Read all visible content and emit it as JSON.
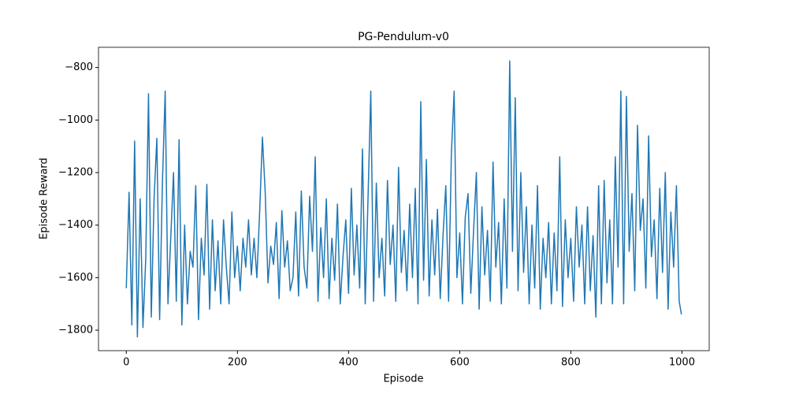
{
  "chart_data": {
    "type": "line",
    "title": "PG-Pendulum-v0",
    "x_label": "Episode",
    "y_label": "Episode Reward",
    "x": [
      0,
      5,
      10,
      15,
      20,
      25,
      30,
      35,
      40,
      45,
      50,
      55,
      60,
      65,
      70,
      75,
      80,
      85,
      90,
      95,
      100,
      105,
      110,
      115,
      120,
      125,
      130,
      135,
      140,
      145,
      150,
      155,
      160,
      165,
      170,
      175,
      180,
      185,
      190,
      195,
      200,
      205,
      210,
      215,
      220,
      225,
      230,
      235,
      240,
      245,
      250,
      255,
      260,
      265,
      270,
      275,
      280,
      285,
      290,
      295,
      300,
      305,
      310,
      315,
      320,
      325,
      330,
      335,
      340,
      345,
      350,
      355,
      360,
      365,
      370,
      375,
      380,
      385,
      390,
      395,
      400,
      405,
      410,
      415,
      420,
      425,
      430,
      435,
      440,
      445,
      450,
      455,
      460,
      465,
      470,
      475,
      480,
      485,
      490,
      495,
      500,
      505,
      510,
      515,
      520,
      525,
      530,
      535,
      540,
      545,
      550,
      555,
      560,
      565,
      570,
      575,
      580,
      585,
      590,
      595,
      600,
      605,
      610,
      615,
      620,
      625,
      630,
      635,
      640,
      645,
      650,
      655,
      660,
      665,
      670,
      675,
      680,
      685,
      690,
      695,
      700,
      705,
      710,
      715,
      720,
      725,
      730,
      735,
      740,
      745,
      750,
      755,
      760,
      765,
      770,
      775,
      780,
      785,
      790,
      795,
      800,
      805,
      810,
      815,
      820,
      825,
      830,
      835,
      840,
      845,
      850,
      855,
      860,
      865,
      870,
      875,
      880,
      885,
      890,
      895,
      900,
      905,
      910,
      915,
      920,
      925,
      930,
      935,
      940,
      945,
      950,
      955,
      960,
      965,
      970,
      975,
      980,
      985,
      990,
      995,
      999
    ],
    "series": [
      {
        "name": "Episode Reward",
        "color": "#1f77b4",
        "values": [
          -1640,
          -1275,
          -1780,
          -1080,
          -1826,
          -1300,
          -1790,
          -1530,
          -900,
          -1750,
          -1300,
          -1070,
          -1760,
          -1240,
          -890,
          -1700,
          -1450,
          -1200,
          -1690,
          -1075,
          -1780,
          -1400,
          -1700,
          -1500,
          -1560,
          -1250,
          -1760,
          -1450,
          -1590,
          -1245,
          -1720,
          -1380,
          -1650,
          -1460,
          -1700,
          -1380,
          -1560,
          -1700,
          -1350,
          -1600,
          -1480,
          -1650,
          -1450,
          -1560,
          -1380,
          -1590,
          -1450,
          -1600,
          -1350,
          -1065,
          -1275,
          -1620,
          -1480,
          -1550,
          -1390,
          -1680,
          -1345,
          -1560,
          -1460,
          -1650,
          -1600,
          -1350,
          -1670,
          -1270,
          -1560,
          -1640,
          -1290,
          -1500,
          -1140,
          -1690,
          -1410,
          -1600,
          -1300,
          -1680,
          -1450,
          -1610,
          -1320,
          -1700,
          -1520,
          -1380,
          -1660,
          -1260,
          -1590,
          -1400,
          -1640,
          -1110,
          -1700,
          -1300,
          -890,
          -1690,
          -1240,
          -1600,
          -1450,
          -1670,
          -1230,
          -1550,
          -1400,
          -1690,
          -1180,
          -1580,
          -1420,
          -1650,
          -1320,
          -1600,
          -1260,
          -1700,
          -930,
          -1610,
          -1150,
          -1670,
          -1380,
          -1590,
          -1340,
          -1680,
          -1440,
          -1250,
          -1690,
          -1130,
          -890,
          -1600,
          -1430,
          -1700,
          -1370,
          -1280,
          -1660,
          -1420,
          -1200,
          -1720,
          -1330,
          -1590,
          -1420,
          -1690,
          -1160,
          -1560,
          -1390,
          -1700,
          -1300,
          -1640,
          -775,
          -1500,
          -915,
          -1650,
          -1200,
          -1580,
          -1330,
          -1700,
          -1400,
          -1640,
          -1250,
          -1720,
          -1450,
          -1600,
          -1390,
          -1700,
          -1430,
          -1650,
          -1140,
          -1710,
          -1380,
          -1600,
          -1450,
          -1690,
          -1330,
          -1560,
          -1400,
          -1700,
          -1330,
          -1650,
          -1440,
          -1750,
          -1250,
          -1700,
          -1230,
          -1620,
          -1380,
          -1700,
          -1140,
          -1560,
          -890,
          -1700,
          -910,
          -1500,
          -1280,
          -1650,
          -1020,
          -1420,
          -1300,
          -1640,
          -1060,
          -1520,
          -1380,
          -1680,
          -1260,
          -1580,
          -1200,
          -1720,
          -1350,
          -1560,
          -1250,
          -1690,
          -1740
        ]
      }
    ],
    "xlim": [
      -50,
      1049
    ],
    "ylim": [
      -1878,
      -723
    ],
    "xticks": [
      0,
      200,
      400,
      600,
      800,
      1000
    ],
    "yticks": [
      {
        "value": -1800,
        "label": "−1800"
      },
      {
        "value": -1600,
        "label": "−1600"
      },
      {
        "value": -1400,
        "label": "−1400"
      },
      {
        "value": -1200,
        "label": "−1200"
      },
      {
        "value": -1000,
        "label": "−1000"
      },
      {
        "value": -800,
        "label": "−800"
      }
    ]
  }
}
